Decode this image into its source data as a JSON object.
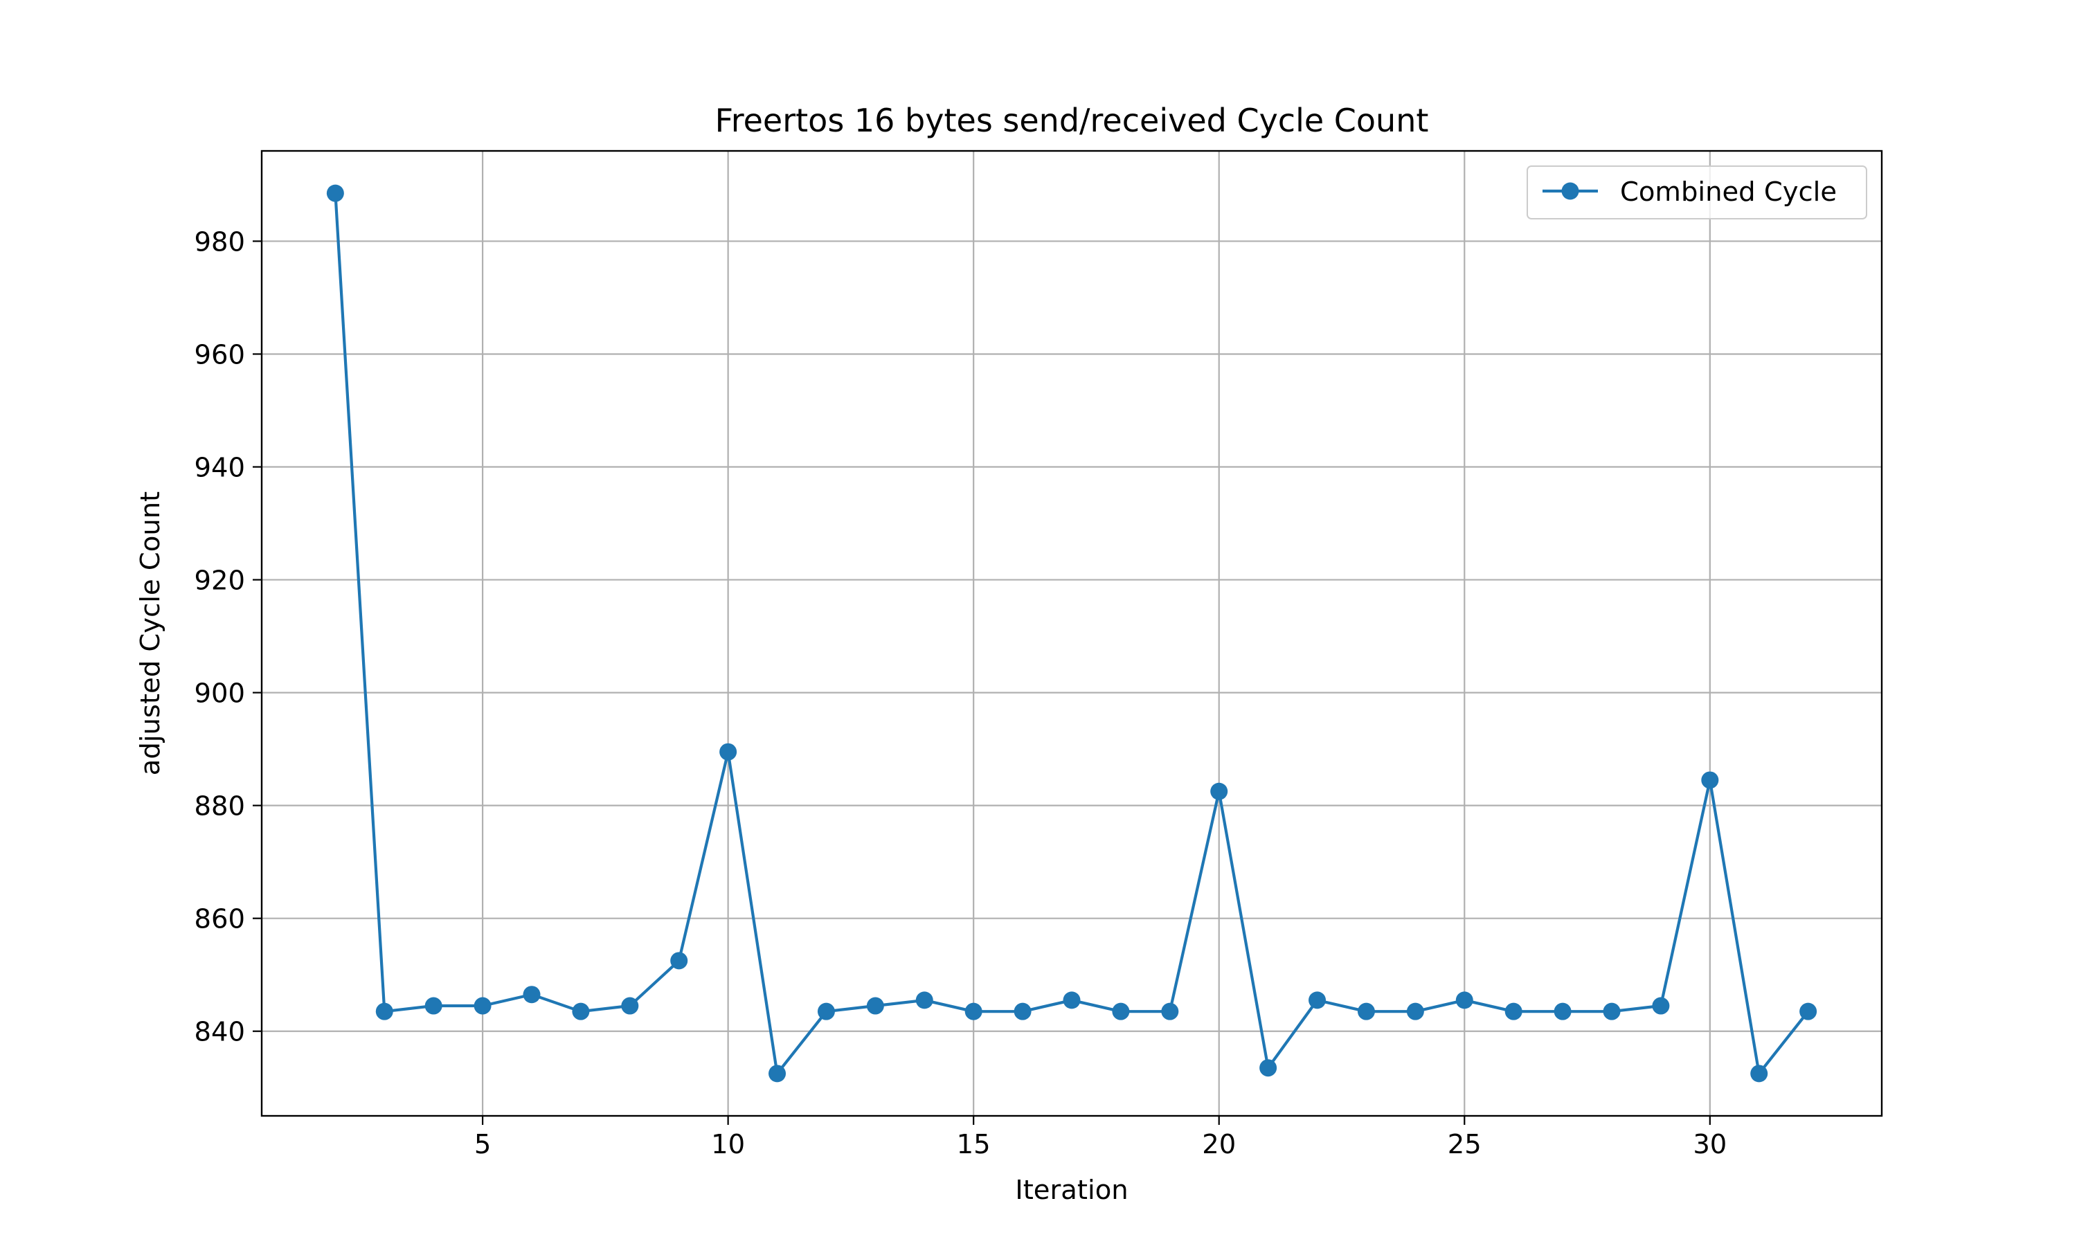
{
  "chart_data": {
    "type": "line",
    "title": "Freertos 16 bytes send/received Cycle Count",
    "xlabel": "Iteration",
    "ylabel": "adjusted Cycle Count",
    "xlim": [
      0.5,
      33.5
    ],
    "ylim": [
      825,
      996
    ],
    "xticks": [
      5,
      10,
      15,
      20,
      25,
      30
    ],
    "yticks": [
      840,
      860,
      880,
      900,
      920,
      940,
      960,
      980
    ],
    "grid": true,
    "legend_position": "top-right",
    "series": [
      {
        "name": "Combined Cycle",
        "color": "#1f77b4",
        "marker": "circle",
        "x": [
          2,
          3,
          4,
          5,
          6,
          7,
          8,
          9,
          10,
          11,
          12,
          13,
          14,
          15,
          16,
          17,
          18,
          19,
          20,
          21,
          22,
          23,
          24,
          25,
          26,
          27,
          28,
          29,
          30,
          31,
          32
        ],
        "values": [
          988.5,
          843.5,
          844.5,
          844.5,
          846.5,
          843.5,
          844.5,
          852.5,
          889.5,
          832.5,
          843.5,
          844.5,
          845.5,
          843.5,
          843.5,
          845.5,
          843.5,
          843.5,
          882.5,
          833.5,
          845.5,
          843.5,
          843.5,
          845.5,
          843.5,
          843.5,
          843.5,
          844.5,
          884.5,
          832.5,
          843.5
        ]
      }
    ]
  }
}
